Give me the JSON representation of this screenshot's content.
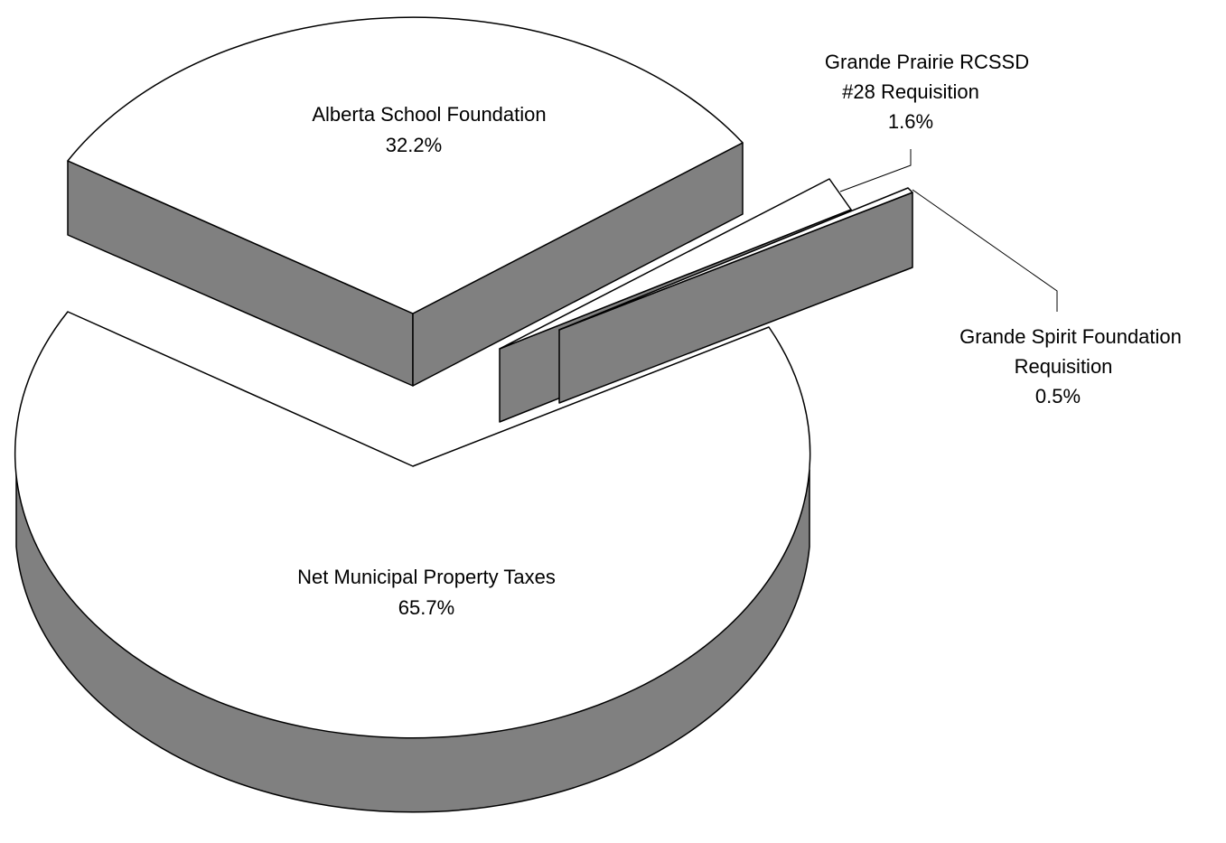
{
  "chart_data": {
    "type": "pie",
    "title": "",
    "style": "3d-exploded",
    "top_color": "#ffffff",
    "side_color": "#808080",
    "slices": [
      {
        "label_lines": [
          "Net Municipal Property Taxes"
        ],
        "value": 65.7,
        "value_label": "65.7%"
      },
      {
        "label_lines": [
          "Alberta School Foundation"
        ],
        "value": 32.2,
        "value_label": "32.2%"
      },
      {
        "label_lines": [
          "Grande Prairie RCSSD",
          "#28 Requisition"
        ],
        "value": 1.6,
        "value_label": "1.6%"
      },
      {
        "label_lines": [
          "Grande Spirit Foundation",
          "Requisition"
        ],
        "value": 0.5,
        "value_label": "0.5%"
      }
    ]
  }
}
